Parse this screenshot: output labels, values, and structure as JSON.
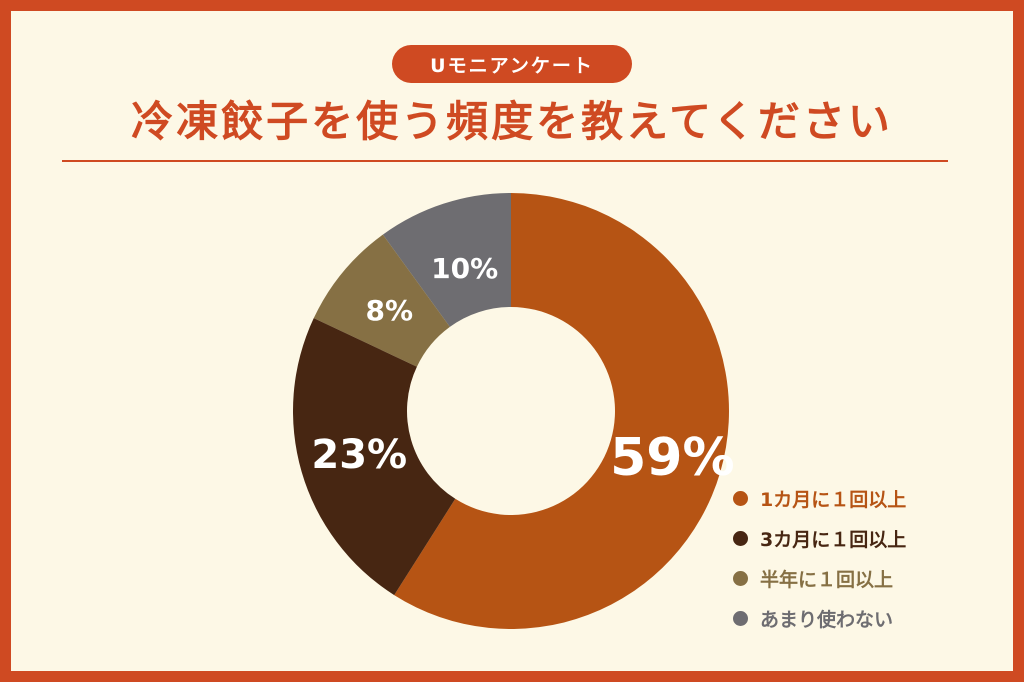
{
  "header": {
    "badge": "Uモニアンケート",
    "title": "冷凍餃子を使う頻度を教えてください"
  },
  "chart_data": {
    "type": "pie",
    "donut": true,
    "categories": [
      "1カ月に１回以上",
      "3カ月に１回以上",
      "半年に１回以上",
      "あまり使わない"
    ],
    "values": [
      59,
      23,
      8,
      10
    ],
    "labels": [
      "59%",
      "23%",
      "8%",
      "10%"
    ],
    "colors": [
      "#b65414",
      "#472612",
      "#867044",
      "#6e6d71"
    ],
    "legend_position": "bottom-right"
  },
  "colors": {
    "accent": "#cf4a22",
    "background": "#fdf8e6"
  }
}
